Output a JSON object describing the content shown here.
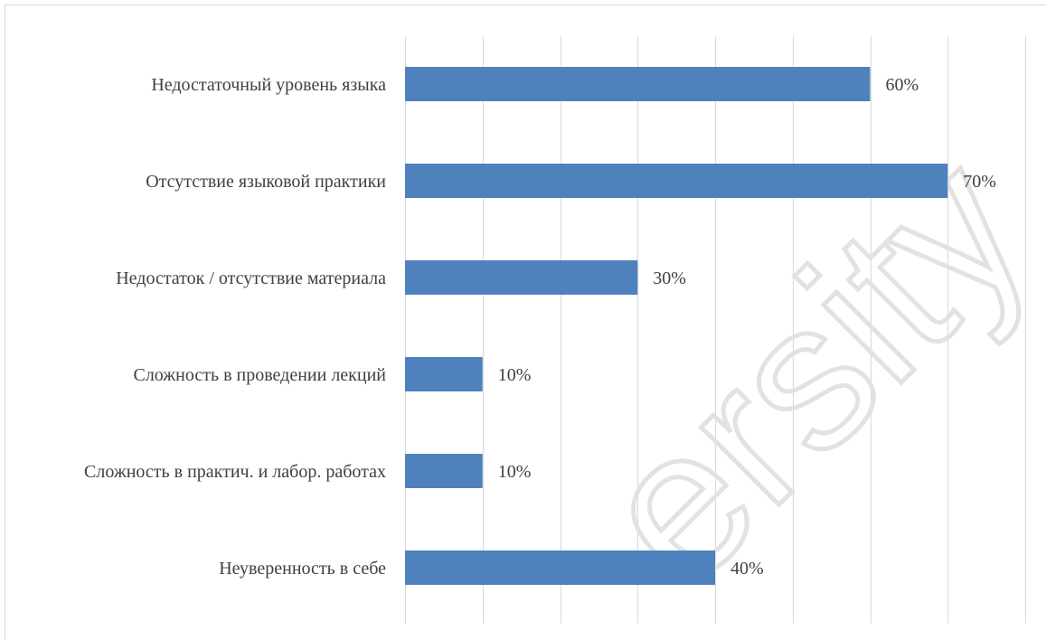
{
  "chart_data": {
    "type": "bar",
    "orientation": "horizontal",
    "categories": [
      "Недостаточный уровень языка",
      "Отсутствие языковой практики",
      "Недостаток / отсутствие материала",
      "Сложность в проведении лекций",
      "Сложность в практич. и лабор. работах",
      "Неуверенность в себе"
    ],
    "values": [
      60,
      70,
      30,
      10,
      10,
      40
    ],
    "value_labels": [
      "60%",
      "70%",
      "30%",
      "10%",
      "10%",
      "40%"
    ],
    "title": "",
    "xlabel": "",
    "ylabel": "",
    "xlim": [
      0,
      80
    ],
    "grid": "vertical",
    "legend": "none",
    "bar_color": "#4f81bd",
    "watermark_text": "ersity"
  }
}
